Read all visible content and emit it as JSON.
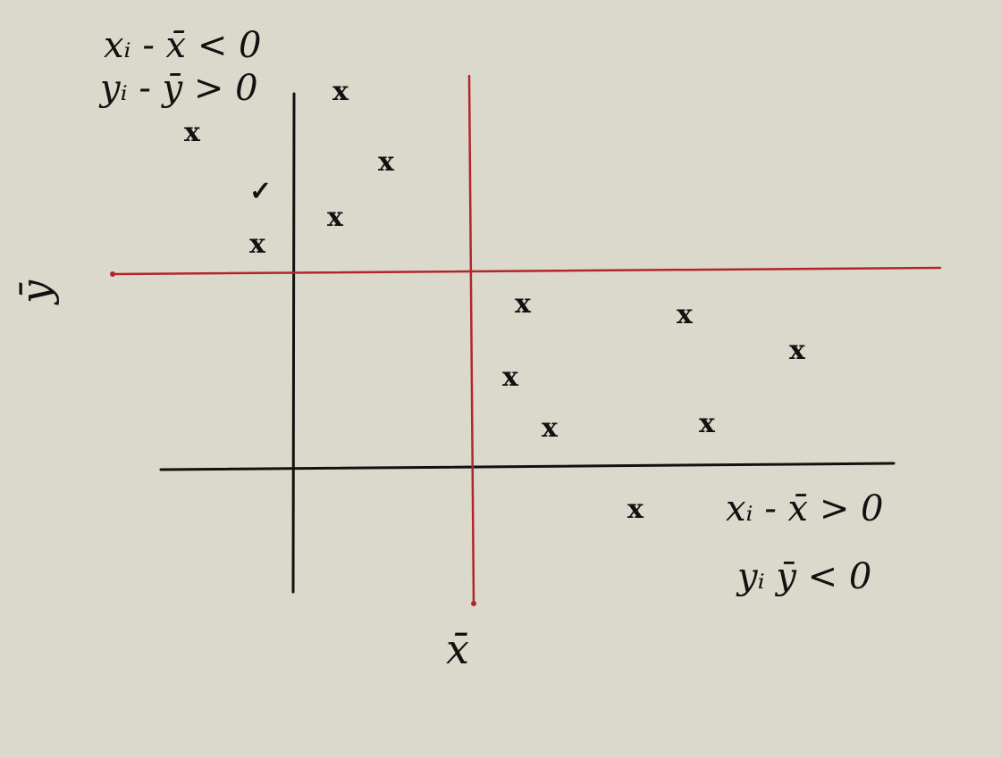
{
  "colors": {
    "background": "#dbd9cc",
    "ink": "#111111",
    "mean_line": "#b2262b"
  },
  "labels": {
    "x_mean": "x̄",
    "y_mean": "ȳ",
    "top_left_line1": "xᵢ - x̄ < 0",
    "top_left_line2": "yᵢ - ȳ > 0",
    "bottom_right_line1": "xᵢ - x̄ > 0",
    "bottom_right_line2": "yᵢ  ȳ < 0"
  },
  "points": [
    {
      "quadrant": "upper-left",
      "symbol": "x"
    },
    {
      "quadrant": "upper-left",
      "symbol": "x"
    },
    {
      "quadrant": "upper-left",
      "symbol": "x"
    },
    {
      "quadrant": "upper-left",
      "symbol": "✓"
    },
    {
      "quadrant": "upper-left",
      "symbol": "x"
    },
    {
      "quadrant": "upper-left",
      "symbol": "x"
    },
    {
      "quadrant": "lower-right",
      "symbol": "x"
    },
    {
      "quadrant": "lower-right",
      "symbol": "x"
    },
    {
      "quadrant": "lower-right",
      "symbol": "x"
    },
    {
      "quadrant": "lower-right",
      "symbol": "x"
    },
    {
      "quadrant": "lower-right",
      "symbol": "x"
    },
    {
      "quadrant": "lower-right",
      "symbol": "x"
    },
    {
      "quadrant": "outside",
      "symbol": "x"
    }
  ]
}
